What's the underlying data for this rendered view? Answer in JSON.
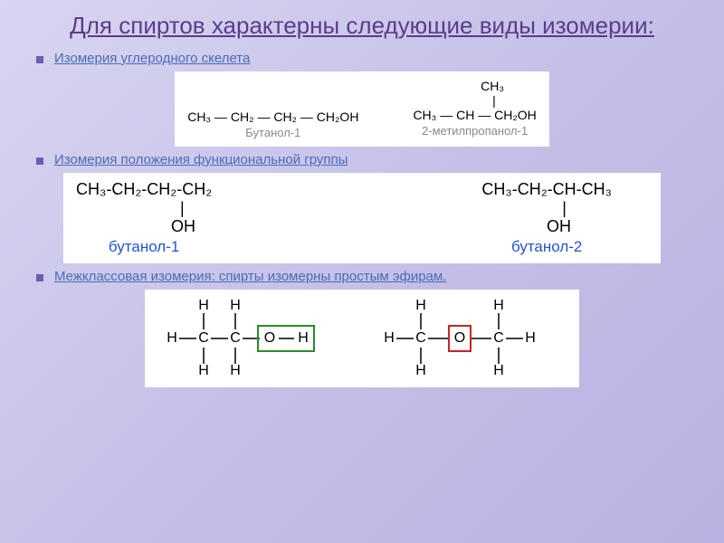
{
  "title": {
    "text": "Для спиртов характерны следующие виды изомерии:",
    "color": "#5a3d8a",
    "fontsize": 26
  },
  "subtitle_color": "#4a6db5",
  "subtitle_fontsize": 15,
  "sections": {
    "skeleton": {
      "label": "Изомерия углеродного скелета",
      "mol1": {
        "formula": "CH₃ — CH₂ — CH₂ — CH₂OH",
        "name": "Бутанол-1",
        "name_color": "#888888"
      },
      "mol2": {
        "line1": "          CH₃",
        "line2": "           |",
        "line3": "CH₃ — CH — CH₂OH",
        "name": "2-метилпропанол-1",
        "name_color": "#888888"
      },
      "formula_fontsize": 14
    },
    "position": {
      "label": "Изомерия положения функциональной группы",
      "mol1": {
        "line1": "CH₃-CH₂-CH₂-CH₂",
        "line2": "                       |",
        "line3": "                     OH",
        "name": "бутанол-1",
        "name_color": "#2255cc"
      },
      "mol2": {
        "line1": "CH₃-CH₂-CH-CH₃",
        "line2": "     |          ",
        "line3": "    OH         ",
        "name": "бутанол-2",
        "name_color": "#2255cc"
      },
      "formula_fontsize": 18
    },
    "interclass": {
      "label": "Межклассовая изомерия: спирты изомерны простым эфирам.",
      "box1_color": "#2a8a2a",
      "box2_color": "#cc2222",
      "atom_fontsize": 16
    }
  }
}
